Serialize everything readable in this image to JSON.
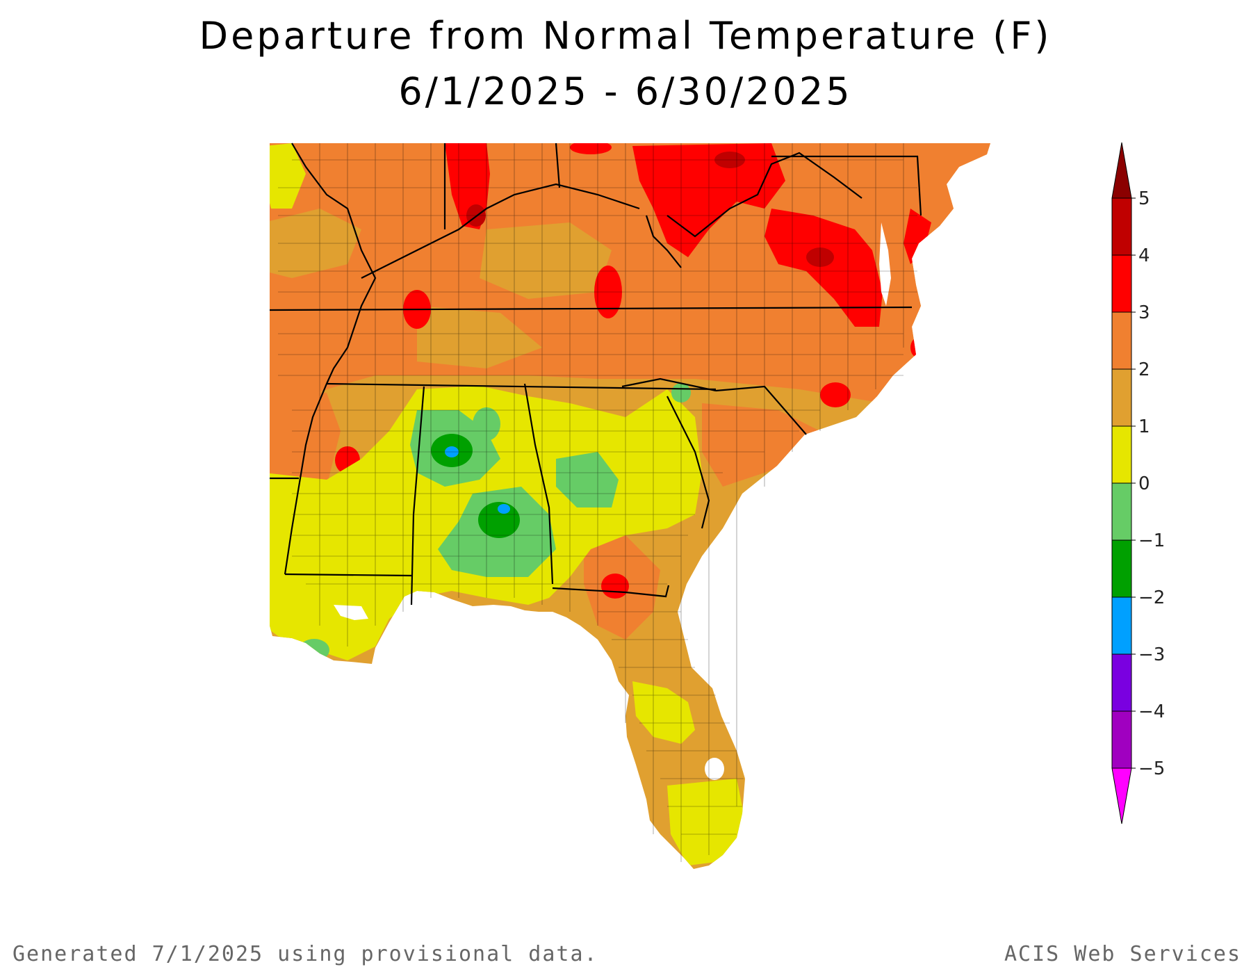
{
  "title": {
    "line1": "Departure from Normal Temperature (F)",
    "line2": "6/1/2025 - 6/30/2025"
  },
  "legend": {
    "ticks": [
      "5",
      "4",
      "3",
      "2",
      "1",
      "0",
      "−1",
      "−2",
      "−3",
      "−4",
      "−5"
    ],
    "bins": [
      {
        "range": "above 5",
        "color": "#8b0000"
      },
      {
        "range": "4 to 5",
        "color": "#c00000"
      },
      {
        "range": "3 to 4",
        "color": "#ff0000"
      },
      {
        "range": "2 to 3",
        "color": "#f08030"
      },
      {
        "range": "1 to 2",
        "color": "#e0a030"
      },
      {
        "range": "0 to 1",
        "color": "#e6e600"
      },
      {
        "range": "-1 to 0",
        "color": "#66cc66"
      },
      {
        "range": "-2 to -1",
        "color": "#00a000"
      },
      {
        "range": "-3 to -2",
        "color": "#00a0ff"
      },
      {
        "range": "-4 to -3",
        "color": "#7a00e0"
      },
      {
        "range": "-5 to -4",
        "color": "#a000c0"
      },
      {
        "range": "below -5",
        "color": "#ff00ff"
      }
    ]
  },
  "footer": {
    "left": "Generated 7/1/2025 using provisional data.",
    "right": "ACIS Web Services"
  }
}
